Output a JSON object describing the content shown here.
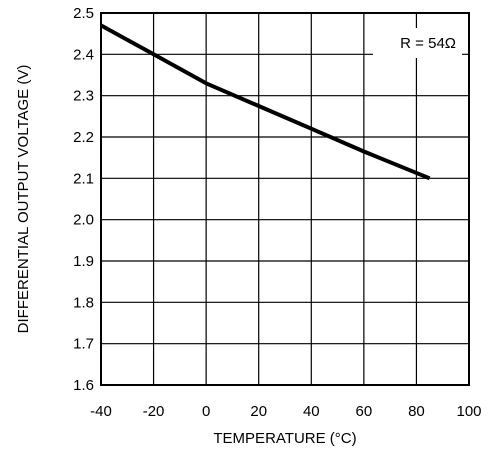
{
  "chart_data": {
    "type": "line",
    "title": "",
    "xlabel": "TEMPERATURE (°C)",
    "ylabel": "DIFFERENTIAL OUTPUT VOLTAGE (V)",
    "xlim": [
      -40,
      100
    ],
    "ylim": [
      1.6,
      2.5
    ],
    "xticks": [
      -40,
      -20,
      0,
      20,
      40,
      60,
      80,
      100
    ],
    "yticks": [
      1.6,
      1.7,
      1.8,
      1.9,
      2.0,
      2.1,
      2.2,
      2.3,
      2.4,
      2.5
    ],
    "xtick_labels": [
      "-40",
      "-20",
      "0",
      "20",
      "40",
      "60",
      "80",
      "100"
    ],
    "ytick_labels": [
      "1.6",
      "1.7",
      "1.8",
      "1.9",
      "2.0",
      "2.1",
      "2.2",
      "2.3",
      "2.4",
      "2.5"
    ],
    "grid": true,
    "annotation": "R  = 54Ω",
    "series": [
      {
        "x": [
          -40,
          -20,
          0,
          20,
          40,
          60,
          85
        ],
        "y": [
          2.47,
          2.4,
          2.33,
          2.275,
          2.22,
          2.165,
          2.1
        ]
      }
    ]
  }
}
